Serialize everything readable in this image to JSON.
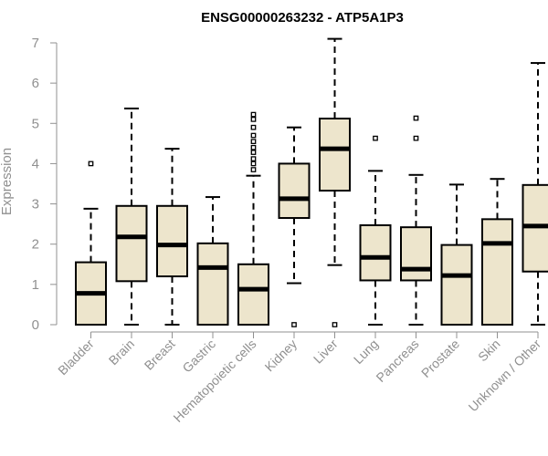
{
  "chart_data": {
    "type": "boxplot",
    "title": "ENSG00000263232 - ATP5A1P3",
    "xlabel": "",
    "ylabel": "Expression",
    "ylim": [
      0,
      7
    ],
    "yticks": [
      0,
      1,
      2,
      3,
      4,
      5,
      6,
      7
    ],
    "grid": false,
    "box_fill": "#ede5cc",
    "box_stroke": "#000000",
    "axis_color": "#909090",
    "categories": [
      "Bladder",
      "Brain",
      "Breast",
      "Gastric",
      "Hematopoietic cells",
      "Kidney",
      "Liver",
      "Lung",
      "Pancreas",
      "Prostate",
      "Skin",
      "Unknown / Other"
    ],
    "boxes": [
      {
        "min": 0,
        "q1": 0,
        "median": 0.78,
        "q3": 1.55,
        "max": 2.88,
        "outliers": [
          4.0
        ]
      },
      {
        "min": 0,
        "q1": 1.08,
        "median": 2.18,
        "q3": 2.95,
        "max": 5.37,
        "outliers": []
      },
      {
        "min": 0,
        "q1": 1.2,
        "median": 1.98,
        "q3": 2.95,
        "max": 4.37,
        "outliers": []
      },
      {
        "min": 0,
        "q1": 0,
        "median": 1.42,
        "q3": 2.02,
        "max": 3.17,
        "outliers": []
      },
      {
        "min": 0,
        "q1": 0,
        "median": 0.88,
        "q3": 1.5,
        "max": 3.7,
        "outliers": [
          3.85,
          4.0,
          4.12,
          4.28,
          4.4,
          4.55,
          4.7,
          4.9,
          5.1,
          5.22
        ]
      },
      {
        "min": 1.03,
        "q1": 2.65,
        "median": 3.13,
        "q3": 4.0,
        "max": 4.9,
        "outliers": [
          0
        ]
      },
      {
        "min": 1.48,
        "q1": 3.33,
        "median": 4.37,
        "q3": 5.12,
        "max": 7.1,
        "outliers": [
          0
        ]
      },
      {
        "min": 0,
        "q1": 1.1,
        "median": 1.67,
        "q3": 2.47,
        "max": 3.82,
        "outliers": [
          4.63
        ]
      },
      {
        "min": 0,
        "q1": 1.1,
        "median": 1.38,
        "q3": 2.42,
        "max": 3.72,
        "outliers": [
          4.63,
          5.13
        ]
      },
      {
        "min": 0,
        "q1": 0,
        "median": 1.22,
        "q3": 1.98,
        "max": 3.48,
        "outliers": []
      },
      {
        "min": 0,
        "q1": 0,
        "median": 2.02,
        "q3": 2.62,
        "max": 3.62,
        "outliers": []
      },
      {
        "min": 0,
        "q1": 1.32,
        "median": 2.45,
        "q3": 3.47,
        "max": 6.5,
        "outliers": []
      }
    ]
  }
}
